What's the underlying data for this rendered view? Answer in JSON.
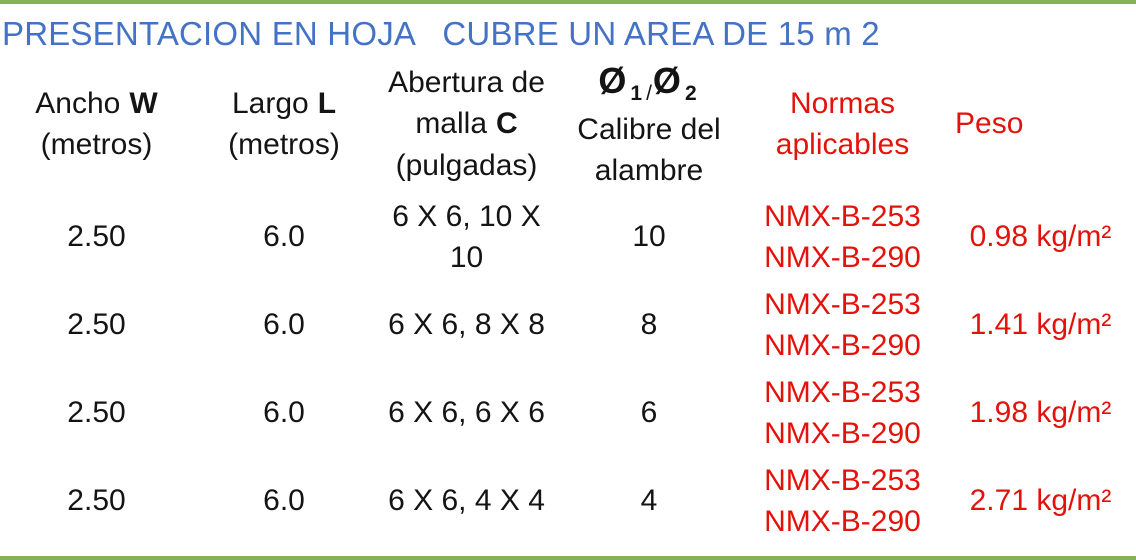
{
  "page": {
    "title": "PRESENTACION EN HOJA   CUBRE UN AREA DE 15 m 2",
    "colors": {
      "title_blue": "#4472C4",
      "accent_red": "#E3120B",
      "border_green": "#86B257",
      "text_black": "#141414"
    }
  },
  "table": {
    "headers": {
      "ancho": {
        "label": "Ancho",
        "bold": "W",
        "unit": "(metros)"
      },
      "largo": {
        "label": "Largo",
        "bold": "L",
        "unit": "(metros)"
      },
      "abertura": {
        "line1": "Abertura de",
        "line2": "malla",
        "line2_bold": "C",
        "line3": "(pulgadas)"
      },
      "calibre": {
        "phi1": "Ø",
        "sub1": "1",
        "sep": "/",
        "phi2": "Ø",
        "sub2": "2",
        "line2": "Calibre del",
        "line3": "alambre"
      },
      "normas": {
        "line1": "Normas",
        "line2": "aplicables"
      },
      "peso": "Peso"
    },
    "rows": [
      {
        "ancho": "2.50",
        "largo": "6.0",
        "abertura": "6 X 6, 10 X 10",
        "calibre": "10",
        "normas": [
          "NMX-B-253",
          "NMX-B-290"
        ],
        "peso": "0.98 kg/m²"
      },
      {
        "ancho": "2.50",
        "largo": "6.0",
        "abertura": "6 X 6, 8 X 8",
        "calibre": "8",
        "normas": [
          "NMX-B-253",
          "NMX-B-290"
        ],
        "peso": "1.41 kg/m²"
      },
      {
        "ancho": "2.50",
        "largo": "6.0",
        "abertura": "6 X 6, 6 X 6",
        "calibre": "6",
        "normas": [
          "NMX-B-253",
          "NMX-B-290"
        ],
        "peso": "1.98 kg/m²"
      },
      {
        "ancho": "2.50",
        "largo": "6.0",
        "abertura": "6 X 6, 4 X 4",
        "calibre": "4",
        "normas": [
          "NMX-B-253",
          "NMX-B-290"
        ],
        "peso": "2.71 kg/m²"
      }
    ]
  }
}
